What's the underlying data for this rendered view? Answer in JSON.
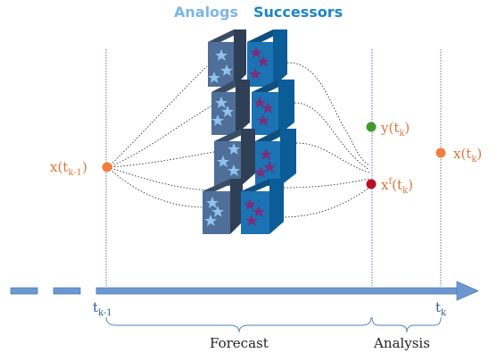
{
  "legend": {
    "analogs_label": "Analogs",
    "successors_label": "Successors",
    "analogs_color": "#7db6e8",
    "successors_color": "#1a86c8"
  },
  "labels": {
    "x_prev": "x(t",
    "x_prev_sub": "k-1",
    "x_prev_close": ")",
    "y_k": "y(t",
    "y_k_sub": "k",
    "y_k_close": ")",
    "xf_k": "x",
    "xf_k_sup": "f",
    "xf_k_mid": "(t",
    "xf_k_sub": "k",
    "xf_k_close": ")",
    "x_k": "x(t",
    "x_k_sub": "k",
    "x_k_close": ")"
  },
  "axis": {
    "t_prev": "t",
    "t_prev_sub": "k-1",
    "t_k": "t",
    "t_k_sub": "k",
    "forecast_label": "Forecast",
    "analysis_label": "Analysis"
  },
  "colors": {
    "orange": "#f07f3c",
    "green": "#3f9a2a",
    "red": "#b80f22",
    "axis_blue": "#6d97cf",
    "text_orange": "#d9773a",
    "text_blue": "#2a5d9c",
    "analog_cube": "#4f6f99",
    "successor_cube": "#1b73b3",
    "star_analog": "#8fc2ee",
    "star_successor": "#7a2f7c"
  }
}
